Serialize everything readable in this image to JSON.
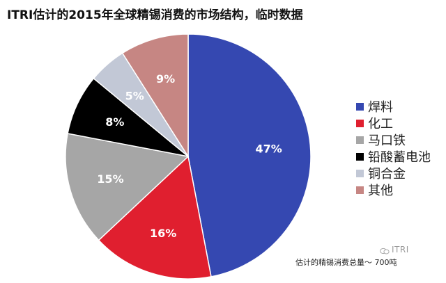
{
  "chart_data": {
    "type": "pie",
    "title": "ITRI估计的2015年全球精锡消费的市场结构，临时数据",
    "categories": [
      "焊料",
      "化工",
      "马口铁",
      "铅酸蓄电池",
      "铜合金",
      "其他"
    ],
    "values": [
      47,
      16,
      15,
      8,
      5,
      9
    ],
    "value_labels": [
      "47%",
      "16%",
      "15%",
      "8%",
      "5%",
      "9%"
    ],
    "colors": [
      "#3548b1",
      "#e01f2f",
      "#a6a6a6",
      "#000000",
      "#c2c8d6",
      "#c68683"
    ],
    "label_colors": [
      "#ffffff",
      "#ffffff",
      "#ffffff",
      "#ffffff",
      "#ffffff",
      "#ffffff"
    ],
    "start_angle_deg": 0,
    "direction": "clockwise",
    "legend_position": "right"
  },
  "footnote": "估计的精锡消费总量～     700吨",
  "watermark": "ITRI"
}
